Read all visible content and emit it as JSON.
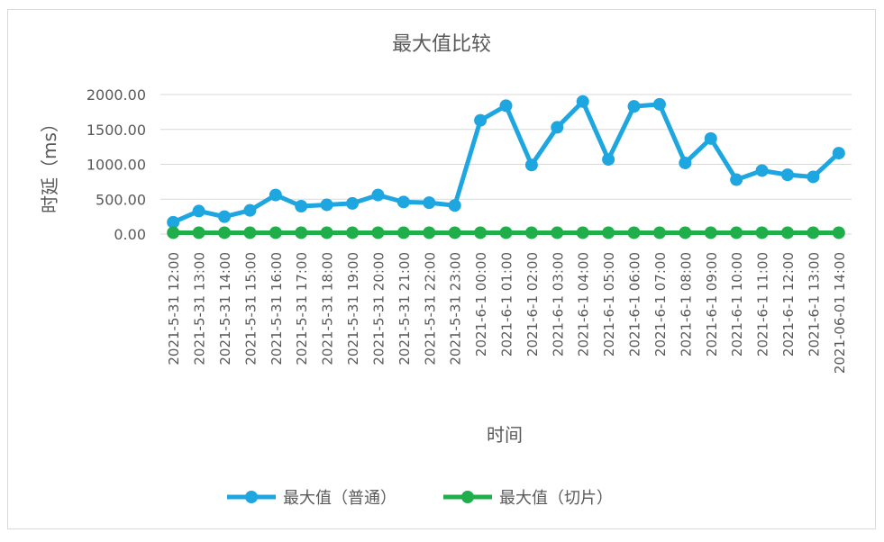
{
  "chart_data": {
    "type": "line",
    "title": "最大值比较",
    "xlabel": "时间",
    "ylabel": "时延（ms）",
    "ylim": [
      0,
      2000
    ],
    "yticks": [
      "2000.00",
      "1500.00",
      "1000.00",
      "500.00",
      "0.00"
    ],
    "ytick_values": [
      2000,
      1500,
      1000,
      500,
      0
    ],
    "grid": true,
    "legend_position": "bottom",
    "categories": [
      "2021-5-31 12:00",
      "2021-5-31 13:00",
      "2021-5-31 14:00",
      "2021-5-31 15:00",
      "2021-5-31 16:00",
      "2021-5-31 17:00",
      "2021-5-31 18:00",
      "2021-5-31 19:00",
      "2021-5-31 20:00",
      "2021-5-31 21:00",
      "2021-5-31 22:00",
      "2021-5-31 23:00",
      "2021-6-1 00:00",
      "2021-6-1 01:00",
      "2021-6-1 02:00",
      "2021-6-1 03:00",
      "2021-6-1 04:00",
      "2021-6-1 05:00",
      "2021-6-1 06:00",
      "2021-6-1 07:00",
      "2021-6-1 08:00",
      "2021-6-1 09:00",
      "2021-6-1 10:00",
      "2021-6-1 11:00",
      "2021-6-1 12:00",
      "2021-6-1 13:00",
      "2021-06-01 14:00"
    ],
    "series": [
      {
        "name": "最大值（普通）",
        "color": "#1ea6e0",
        "values": [
          170,
          330,
          250,
          340,
          560,
          400,
          420,
          440,
          560,
          460,
          450,
          410,
          1630,
          1840,
          990,
          1530,
          1900,
          1070,
          1830,
          1860,
          1020,
          1370,
          780,
          910,
          850,
          820,
          1160
        ]
      },
      {
        "name": "最大值（切片）",
        "color": "#1fae4a",
        "values": [
          20,
          20,
          20,
          20,
          20,
          20,
          20,
          20,
          20,
          20,
          20,
          20,
          20,
          20,
          20,
          20,
          20,
          20,
          20,
          20,
          20,
          20,
          20,
          20,
          20,
          20,
          20
        ]
      }
    ]
  }
}
